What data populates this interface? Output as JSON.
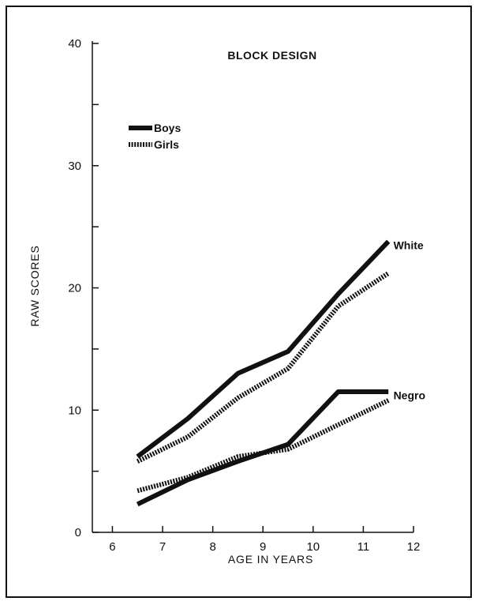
{
  "chart_data": {
    "type": "line",
    "title": "BLOCK DESIGN",
    "xlabel": "AGE IN YEARS",
    "ylabel": "RAW SCORES",
    "xlim": [
      5.6,
      12
    ],
    "ylim": [
      0,
      40
    ],
    "x_ticks": [
      6,
      7,
      8,
      9,
      10,
      11,
      12
    ],
    "y_ticks_labeled": [
      0,
      10,
      20,
      30,
      40
    ],
    "y_ticks_minor": [
      5,
      15,
      25,
      35
    ],
    "grid": false,
    "legend": {
      "placement": "top-left",
      "entries": [
        {
          "label": "Boys",
          "style": "solid"
        },
        {
          "label": "Girls",
          "style": "dotted"
        }
      ]
    },
    "groups": [
      {
        "label": "White",
        "label_x": 11.6,
        "label_y": 23.5
      },
      {
        "label": "Negro",
        "label_x": 11.6,
        "label_y": 11.2
      }
    ],
    "series": [
      {
        "group": "White",
        "legend": "Boys",
        "style": "solid",
        "x": [
          6.5,
          7.5,
          8.5,
          9.5,
          10.5,
          11.5
        ],
        "y": [
          6.2,
          9.3,
          13.0,
          14.8,
          19.5,
          23.8
        ]
      },
      {
        "group": "White",
        "legend": "Girls",
        "style": "dotted",
        "x": [
          6.5,
          7.5,
          8.5,
          9.5,
          10.5,
          11.5
        ],
        "y": [
          5.8,
          7.8,
          11.0,
          13.4,
          18.5,
          21.2
        ]
      },
      {
        "group": "Negro",
        "legend": "Boys",
        "style": "solid",
        "x": [
          6.5,
          7.5,
          8.5,
          9.5,
          10.5,
          11.5
        ],
        "y": [
          2.3,
          4.3,
          5.8,
          7.2,
          11.5,
          11.5
        ]
      },
      {
        "group": "Negro",
        "legend": "Girls",
        "style": "dotted",
        "x": [
          6.5,
          7.5,
          8.5,
          9.5,
          10.5,
          11.5
        ],
        "y": [
          3.4,
          4.5,
          6.2,
          6.8,
          8.8,
          10.8
        ]
      }
    ]
  }
}
